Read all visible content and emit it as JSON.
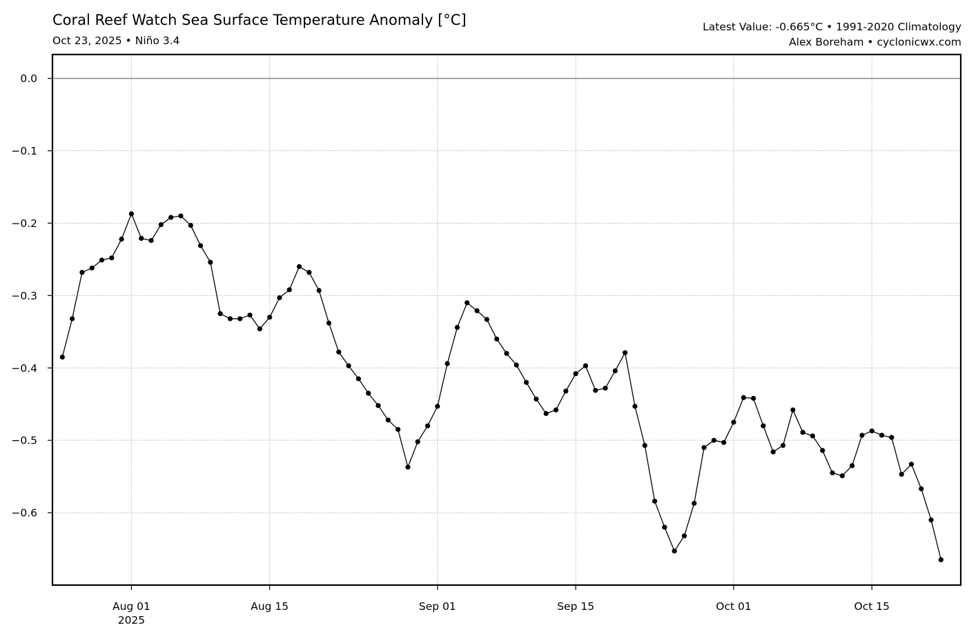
{
  "header": {
    "title": "Coral Reef Watch Sea Surface Temperature Anomaly [°C]",
    "subtitle": "Oct 23, 2025 • Niño 3.4",
    "latest": "Latest Value: -0.665°C • 1991-2020 Climatology",
    "credit": "Alex Boreham • cyclonicwx.com"
  },
  "chart_data": {
    "type": "line",
    "title": "Coral Reef Watch Sea Surface Temperature Anomaly [°C]",
    "subtitle": "Oct 23, 2025 • Niño 3.4",
    "xlabel": "",
    "ylabel": "",
    "x_start": "2025-07-25",
    "x_end": "2025-10-23",
    "xlim": [
      "2025-07-24",
      "2025-10-24"
    ],
    "ylim": [
      -0.7,
      0.033
    ],
    "grid": true,
    "zero_line": true,
    "xticks": [
      {
        "date": "2025-08-01",
        "label": "Aug 01",
        "sublabel": "2025"
      },
      {
        "date": "2025-08-15",
        "label": "Aug 15",
        "sublabel": ""
      },
      {
        "date": "2025-09-01",
        "label": "Sep 01",
        "sublabel": ""
      },
      {
        "date": "2025-09-15",
        "label": "Sep 15",
        "sublabel": ""
      },
      {
        "date": "2025-10-01",
        "label": "Oct 01",
        "sublabel": ""
      },
      {
        "date": "2025-10-15",
        "label": "Oct 15",
        "sublabel": ""
      }
    ],
    "yticks": [
      {
        "value": 0.0,
        "label": "0.0"
      },
      {
        "value": -0.1,
        "label": "−0.1"
      },
      {
        "value": -0.2,
        "label": "−0.2"
      },
      {
        "value": -0.3,
        "label": "−0.3"
      },
      {
        "value": -0.4,
        "label": "−0.4"
      },
      {
        "value": -0.5,
        "label": "−0.5"
      },
      {
        "value": -0.6,
        "label": "−0.6"
      }
    ],
    "values": [
      -0.385,
      -0.332,
      -0.268,
      -0.262,
      -0.251,
      -0.248,
      -0.222,
      -0.187,
      -0.221,
      -0.224,
      -0.202,
      -0.192,
      -0.19,
      -0.203,
      -0.231,
      -0.254,
      -0.325,
      -0.332,
      -0.332,
      -0.327,
      -0.346,
      -0.33,
      -0.303,
      -0.292,
      -0.26,
      -0.268,
      -0.293,
      -0.338,
      -0.378,
      -0.397,
      -0.415,
      -0.435,
      -0.452,
      -0.472,
      -0.485,
      -0.537,
      -0.502,
      -0.48,
      -0.453,
      -0.394,
      -0.344,
      -0.31,
      -0.321,
      -0.333,
      -0.36,
      -0.38,
      -0.396,
      -0.42,
      -0.443,
      -0.463,
      -0.458,
      -0.432,
      -0.408,
      -0.397,
      -0.431,
      -0.428,
      -0.404,
      -0.379,
      -0.453,
      -0.507,
      -0.584,
      -0.62,
      -0.653,
      -0.632,
      -0.587,
      -0.51,
      -0.5,
      -0.503,
      -0.475,
      -0.441,
      -0.442,
      -0.48,
      -0.516,
      -0.507,
      -0.458,
      -0.489,
      -0.494,
      -0.514,
      -0.545,
      -0.549,
      -0.535,
      -0.493,
      -0.487,
      -0.493,
      -0.496,
      -0.547,
      -0.533,
      -0.567,
      -0.61,
      -0.665
    ]
  }
}
